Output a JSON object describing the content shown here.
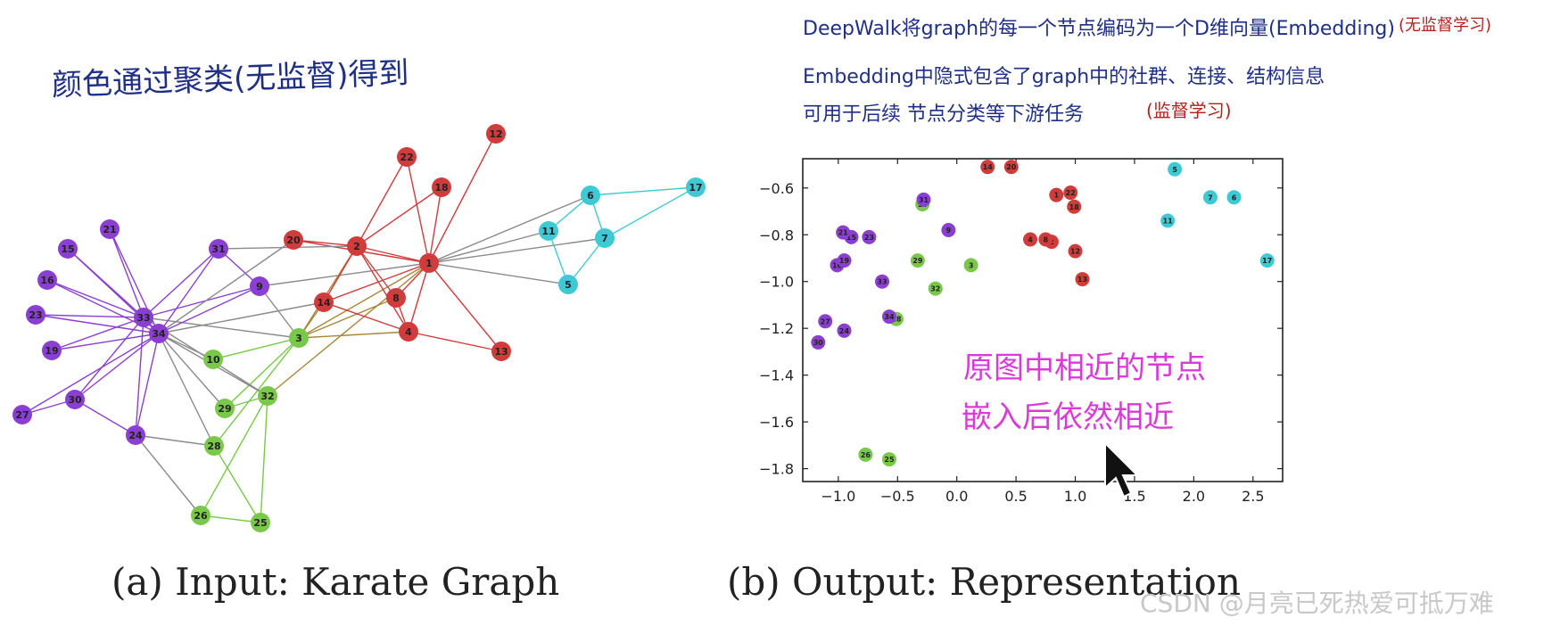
{
  "annotations": {
    "left_note": "颜色通过聚类(无监督)得到",
    "right_line1": "DeepWalk将graph的每一个节点编码为一个D维向量(Embedding)",
    "right_line1_tag": "(无监督学习)",
    "right_line2": "Embedding中隐式包含了graph中的社群、连接、结构信息",
    "right_line3": "可用于后续 节点分类等下游任务",
    "right_line3_tag": "(监督学习)",
    "pink_line1": "原图中相近的节点",
    "pink_line2": "嵌入后依然相近"
  },
  "captions": {
    "left": "(a) Input: Karate Graph",
    "right": "(b) Output: Representation"
  },
  "watermark": "CSDN @月亮已死热爱可抵万难",
  "colors": {
    "purple": "#8a3fd1",
    "red": "#d03b3b",
    "green": "#79c84a",
    "cyan": "#3fc9d4",
    "gray": "#8a8a8a",
    "handwriting_blue": "#1f2f86",
    "handwriting_red": "#b21f1f",
    "handwriting_pink": "#d93ad8"
  },
  "graph": {
    "nodes": [
      {
        "id": "1",
        "color": "red"
      },
      {
        "id": "2",
        "color": "red"
      },
      {
        "id": "3",
        "color": "green"
      },
      {
        "id": "4",
        "color": "red"
      },
      {
        "id": "5",
        "color": "cyan"
      },
      {
        "id": "6",
        "color": "cyan"
      },
      {
        "id": "7",
        "color": "cyan"
      },
      {
        "id": "8",
        "color": "red"
      },
      {
        "id": "9",
        "color": "purple"
      },
      {
        "id": "10",
        "color": "green"
      },
      {
        "id": "11",
        "color": "cyan"
      },
      {
        "id": "12",
        "color": "red"
      },
      {
        "id": "13",
        "color": "red"
      },
      {
        "id": "14",
        "color": "red"
      },
      {
        "id": "15",
        "color": "purple"
      },
      {
        "id": "16",
        "color": "purple"
      },
      {
        "id": "17",
        "color": "cyan"
      },
      {
        "id": "18",
        "color": "red"
      },
      {
        "id": "19",
        "color": "purple"
      },
      {
        "id": "20",
        "color": "red"
      },
      {
        "id": "21",
        "color": "purple"
      },
      {
        "id": "22",
        "color": "red"
      },
      {
        "id": "23",
        "color": "purple"
      },
      {
        "id": "24",
        "color": "purple"
      },
      {
        "id": "25",
        "color": "green"
      },
      {
        "id": "26",
        "color": "green"
      },
      {
        "id": "27",
        "color": "purple"
      },
      {
        "id": "28",
        "color": "green"
      },
      {
        "id": "29",
        "color": "green"
      },
      {
        "id": "30",
        "color": "purple"
      },
      {
        "id": "31",
        "color": "purple"
      },
      {
        "id": "32",
        "color": "green"
      },
      {
        "id": "33",
        "color": "purple"
      },
      {
        "id": "34",
        "color": "purple"
      }
    ],
    "edges": [
      [
        "1",
        "2"
      ],
      [
        "1",
        "3"
      ],
      [
        "1",
        "4"
      ],
      [
        "1",
        "5"
      ],
      [
        "1",
        "6"
      ],
      [
        "1",
        "7"
      ],
      [
        "1",
        "8"
      ],
      [
        "1",
        "9"
      ],
      [
        "1",
        "11"
      ],
      [
        "1",
        "12"
      ],
      [
        "1",
        "13"
      ],
      [
        "1",
        "14"
      ],
      [
        "1",
        "18"
      ],
      [
        "1",
        "20"
      ],
      [
        "1",
        "22"
      ],
      [
        "1",
        "32"
      ],
      [
        "2",
        "3"
      ],
      [
        "2",
        "4"
      ],
      [
        "2",
        "8"
      ],
      [
        "2",
        "14"
      ],
      [
        "2",
        "18"
      ],
      [
        "2",
        "20"
      ],
      [
        "2",
        "22"
      ],
      [
        "2",
        "31"
      ],
      [
        "3",
        "4"
      ],
      [
        "3",
        "8"
      ],
      [
        "3",
        "9"
      ],
      [
        "3",
        "10"
      ],
      [
        "3",
        "14"
      ],
      [
        "3",
        "28"
      ],
      [
        "3",
        "29"
      ],
      [
        "3",
        "33"
      ],
      [
        "4",
        "8"
      ],
      [
        "4",
        "13"
      ],
      [
        "4",
        "14"
      ],
      [
        "5",
        "7"
      ],
      [
        "5",
        "11"
      ],
      [
        "6",
        "7"
      ],
      [
        "6",
        "11"
      ],
      [
        "6",
        "17"
      ],
      [
        "7",
        "17"
      ],
      [
        "9",
        "31"
      ],
      [
        "9",
        "33"
      ],
      [
        "9",
        "34"
      ],
      [
        "10",
        "34"
      ],
      [
        "14",
        "34"
      ],
      [
        "15",
        "33"
      ],
      [
        "15",
        "34"
      ],
      [
        "16",
        "33"
      ],
      [
        "16",
        "34"
      ],
      [
        "19",
        "33"
      ],
      [
        "19",
        "34"
      ],
      [
        "20",
        "34"
      ],
      [
        "21",
        "33"
      ],
      [
        "21",
        "34"
      ],
      [
        "23",
        "33"
      ],
      [
        "23",
        "34"
      ],
      [
        "24",
        "26"
      ],
      [
        "24",
        "28"
      ],
      [
        "24",
        "30"
      ],
      [
        "24",
        "33"
      ],
      [
        "24",
        "34"
      ],
      [
        "25",
        "26"
      ],
      [
        "25",
        "28"
      ],
      [
        "25",
        "32"
      ],
      [
        "26",
        "32"
      ],
      [
        "27",
        "30"
      ],
      [
        "27",
        "34"
      ],
      [
        "28",
        "34"
      ],
      [
        "29",
        "32"
      ],
      [
        "29",
        "34"
      ],
      [
        "30",
        "33"
      ],
      [
        "30",
        "34"
      ],
      [
        "31",
        "33"
      ],
      [
        "31",
        "34"
      ],
      [
        "32",
        "33"
      ],
      [
        "32",
        "34"
      ],
      [
        "33",
        "34"
      ]
    ]
  },
  "chart_data": {
    "type": "scatter",
    "title": "",
    "xlabel": "",
    "ylabel": "",
    "xlim": [
      -1.3,
      2.75
    ],
    "ylim": [
      -1.855,
      -0.475
    ],
    "xticks": [
      "−1.0",
      "−0.5",
      "0.0",
      "0.5",
      "1.0",
      "1.5",
      "2.0",
      "2.5"
    ],
    "xtick_values": [
      -1.0,
      -0.5,
      0.0,
      0.5,
      1.0,
      1.5,
      2.0,
      2.5
    ],
    "yticks": [
      "−0.6",
      "−0.8",
      "−1.0",
      "−1.2",
      "−1.4",
      "−1.6",
      "−1.8"
    ],
    "ytick_values": [
      -0.6,
      -0.8,
      -1.0,
      -1.2,
      -1.4,
      -1.6,
      -1.8
    ],
    "grid": false,
    "points": [
      {
        "label": "1",
        "x": 0.84,
        "y": -0.63,
        "color": "red"
      },
      {
        "label": "2",
        "x": 0.8,
        "y": -0.83,
        "color": "red"
      },
      {
        "label": "3",
        "x": 0.12,
        "y": -0.93,
        "color": "green"
      },
      {
        "label": "4",
        "x": 0.62,
        "y": -0.82,
        "color": "red"
      },
      {
        "label": "5",
        "x": 1.84,
        "y": -0.52,
        "color": "cyan"
      },
      {
        "label": "6",
        "x": 2.34,
        "y": -0.64,
        "color": "cyan"
      },
      {
        "label": "7",
        "x": 2.14,
        "y": -0.64,
        "color": "cyan"
      },
      {
        "label": "8",
        "x": 0.75,
        "y": -0.82,
        "color": "red"
      },
      {
        "label": "9",
        "x": -0.07,
        "y": -0.78,
        "color": "purple"
      },
      {
        "label": "10",
        "x": -0.29,
        "y": -0.67,
        "color": "green"
      },
      {
        "label": "11",
        "x": 1.78,
        "y": -0.74,
        "color": "cyan"
      },
      {
        "label": "12",
        "x": 1.0,
        "y": -0.87,
        "color": "red"
      },
      {
        "label": "13",
        "x": 1.06,
        "y": -0.99,
        "color": "red"
      },
      {
        "label": "14",
        "x": 0.26,
        "y": -0.51,
        "color": "red"
      },
      {
        "label": "15",
        "x": -0.89,
        "y": -0.81,
        "color": "purple"
      },
      {
        "label": "16",
        "x": -1.01,
        "y": -0.93,
        "color": "purple"
      },
      {
        "label": "17",
        "x": 2.62,
        "y": -0.91,
        "color": "cyan"
      },
      {
        "label": "18",
        "x": 0.99,
        "y": -0.68,
        "color": "red"
      },
      {
        "label": "19",
        "x": -0.95,
        "y": -0.91,
        "color": "purple"
      },
      {
        "label": "20",
        "x": 0.46,
        "y": -0.51,
        "color": "red"
      },
      {
        "label": "21",
        "x": -0.96,
        "y": -0.79,
        "color": "purple"
      },
      {
        "label": "22",
        "x": 0.96,
        "y": -0.62,
        "color": "red"
      },
      {
        "label": "23",
        "x": -0.74,
        "y": -0.81,
        "color": "purple"
      },
      {
        "label": "24",
        "x": -0.95,
        "y": -1.21,
        "color": "purple"
      },
      {
        "label": "25",
        "x": -0.57,
        "y": -1.76,
        "color": "green"
      },
      {
        "label": "26",
        "x": -0.77,
        "y": -1.74,
        "color": "green"
      },
      {
        "label": "27",
        "x": -1.11,
        "y": -1.17,
        "color": "purple"
      },
      {
        "label": "28",
        "x": -0.51,
        "y": -1.16,
        "color": "green"
      },
      {
        "label": "29",
        "x": -0.33,
        "y": -0.91,
        "color": "green"
      },
      {
        "label": "30",
        "x": -1.17,
        "y": -1.26,
        "color": "purple"
      },
      {
        "label": "31",
        "x": -0.28,
        "y": -0.65,
        "color": "purple"
      },
      {
        "label": "32",
        "x": -0.18,
        "y": -1.03,
        "color": "green"
      },
      {
        "label": "33",
        "x": -0.63,
        "y": -1.0,
        "color": "purple"
      },
      {
        "label": "34",
        "x": -0.57,
        "y": -1.15,
        "color": "purple"
      }
    ]
  }
}
